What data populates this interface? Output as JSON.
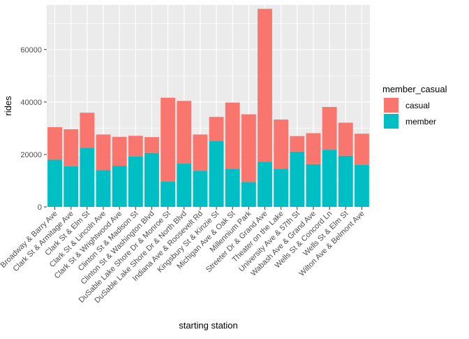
{
  "chart_data": {
    "type": "bar",
    "stacked": true,
    "xlabel": "starting station",
    "ylabel": "rides",
    "ylim": [
      0,
      77000
    ],
    "yticks": [
      0,
      20000,
      40000,
      60000
    ],
    "grid": true,
    "legend": {
      "title": "member_casual",
      "position": "right",
      "entries": [
        "casual",
        "member"
      ]
    },
    "categories": [
      "Broadway & Barry Ave",
      "Clark St & Armitage Ave",
      "Clark St & Elm St",
      "Clark St & Lincoln Ave",
      "Clark St & Wrightwood Ave",
      "Clinton St & Madison St",
      "Clinton St & Washington Blvd",
      "DuSable Lake Shore Dr & Monroe St",
      "DuSable Lake Shore Dr & North Blvd",
      "Indiana Ave & Roosevelt Rd",
      "Kingsbury St & Kinzie St",
      "Michigan Ave & Oak St",
      "Millennium Park",
      "Streeter Dr & Grand Ave",
      "Theater on the Lake",
      "University Ave & 57th St",
      "Wabash Ave & Grand Ave",
      "Wells St & Concord Ln",
      "Wells St & Elm St",
      "Wilton Ave & Belmont Ave"
    ],
    "series": [
      {
        "name": "member",
        "color": "#00BFC4",
        "values": [
          18000,
          15500,
          22600,
          14000,
          15700,
          19200,
          20600,
          9600,
          16500,
          13800,
          25200,
          14500,
          9500,
          17200,
          14600,
          21100,
          16300,
          21800,
          19500,
          16000
        ]
      },
      {
        "name": "casual",
        "color": "#F8766D",
        "values": [
          12400,
          14100,
          13300,
          13600,
          11000,
          7900,
          6000,
          32000,
          23900,
          13800,
          9100,
          25300,
          25800,
          58300,
          18700,
          5900,
          11800,
          16300,
          12600,
          11900
        ]
      }
    ]
  }
}
